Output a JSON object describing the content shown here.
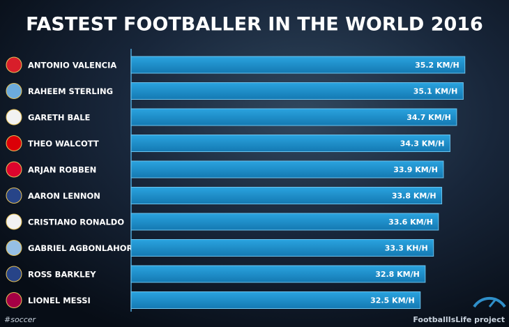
{
  "chart_data": {
    "type": "bar",
    "orientation": "horizontal",
    "title": "FASTEST FOOTBALLER IN THE WORLD 2016",
    "categories": [
      "ANTONIO VALENCIA",
      "RAHEEM STERLING",
      "GARETH BALE",
      "THEO WALCOTT",
      "ARJAN ROBBEN",
      "AARON LENNON",
      "CRISTIANO RONALDO",
      "GABRIEL AGBONLAHOR",
      "ROSS BARKLEY",
      "LIONEL MESSI"
    ],
    "values": [
      35.2,
      35.1,
      34.7,
      34.3,
      33.9,
      33.8,
      33.6,
      33.3,
      32.8,
      32.5
    ],
    "value_labels": [
      "35.2 KM/H",
      "35.1 KM/H",
      "34.7 KM/H",
      "34.3 KM/H",
      "33.9 KM/H",
      "33.8 KM/H",
      "33.6 KM/H",
      "33.3 KH/H",
      "32.8 KM/H",
      "32.5 KM/H"
    ],
    "color": "#1f8ecb",
    "xlim": [
      15,
      37
    ]
  },
  "credits": {
    "left": "#soccer",
    "right": "FootballIsLife project"
  }
}
